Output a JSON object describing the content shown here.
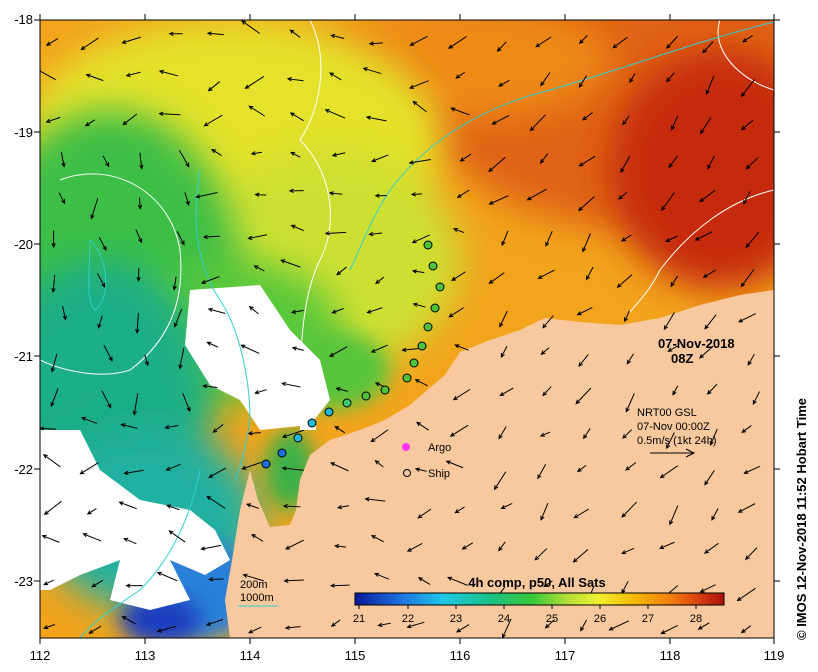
{
  "map": {
    "date": "07-Nov-2018",
    "time": "08Z",
    "credit": "© IMOS 12-Nov-2018 11:52 Hobart Time",
    "x_ticks": [
      "112",
      "113",
      "114",
      "115",
      "116",
      "117",
      "118",
      "119"
    ],
    "y_ticks": [
      "-18",
      "-19",
      "-20",
      "-21",
      "-22",
      "-23"
    ],
    "legend": {
      "argo_label": "Argo",
      "ship_label": "Ship",
      "isobath_200": "200m",
      "isobath_1000": "1000m"
    },
    "vector_key": {
      "line1": "NRT00 GSL",
      "line2": "07-Nov 00:00Z",
      "line3": "0.5m/s (1kt 24h)"
    },
    "colorbar": {
      "title": "4h comp, p50, All Sats",
      "labels": [
        "21",
        "22",
        "23",
        "24",
        "25",
        "26",
        "27",
        "28"
      ]
    },
    "colors": {
      "land": "#f8c99e",
      "cloud": "#ffffff",
      "isobath_200": "#ffffff",
      "isobath_1000": "#30d0d0",
      "argo": "#ff33ff"
    }
  }
}
